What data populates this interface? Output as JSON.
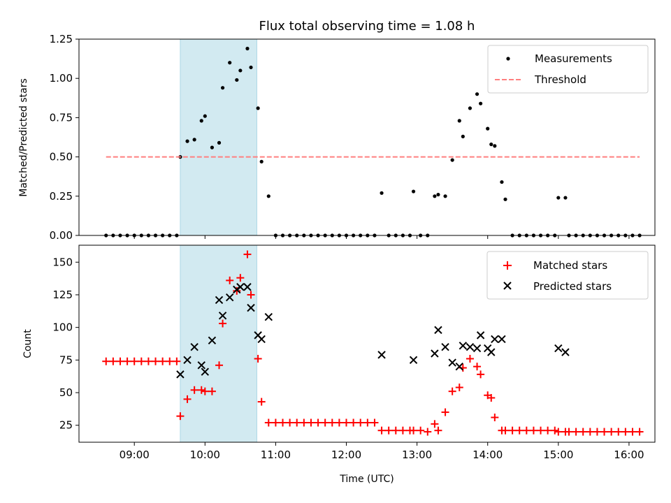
{
  "chart_data": [
    {
      "type": "scatter",
      "title": "Flux total observing time = 1.08 h",
      "xlabel": "",
      "ylabel": "Matched/Predicted stars",
      "ylim": [
        0,
        1.25
      ],
      "xlim": [
        "08:13",
        "16:22"
      ],
      "yticks": [
        "0.00",
        "0.25",
        "0.50",
        "0.75",
        "1.00",
        "1.25"
      ],
      "xticks": [
        "09:00",
        "10:00",
        "11:00",
        "12:00",
        "13:00",
        "14:00",
        "15:00",
        "16:00"
      ],
      "highlight_span": [
        "09:39",
        "10:44"
      ],
      "highlight_color": "#add8e6",
      "legend_position": "upper right",
      "series": [
        {
          "name": "Measurements",
          "kind": "points",
          "color": "#000000",
          "points": [
            [
              "08:36",
              0
            ],
            [
              "08:42",
              0
            ],
            [
              "08:48",
              0
            ],
            [
              "08:54",
              0
            ],
            [
              "09:00",
              0
            ],
            [
              "09:06",
              0
            ],
            [
              "09:12",
              0
            ],
            [
              "09:18",
              0
            ],
            [
              "09:24",
              0
            ],
            [
              "09:30",
              0
            ],
            [
              "09:36",
              0
            ],
            [
              "09:39",
              0.5
            ],
            [
              "09:45",
              0.6
            ],
            [
              "09:51",
              0.61
            ],
            [
              "09:57",
              0.73
            ],
            [
              "10:00",
              0.76
            ],
            [
              "10:06",
              0.56
            ],
            [
              "10:12",
              0.59
            ],
            [
              "10:15",
              0.94
            ],
            [
              "10:21",
              1.1
            ],
            [
              "10:27",
              0.99
            ],
            [
              "10:30",
              1.05
            ],
            [
              "10:36",
              1.19
            ],
            [
              "10:39",
              1.07
            ],
            [
              "10:45",
              0.81
            ],
            [
              "10:48",
              0.47
            ],
            [
              "10:54",
              0.25
            ],
            [
              "11:00",
              0
            ],
            [
              "11:06",
              0
            ],
            [
              "11:12",
              0
            ],
            [
              "11:18",
              0
            ],
            [
              "11:24",
              0
            ],
            [
              "11:30",
              0
            ],
            [
              "11:36",
              0
            ],
            [
              "11:42",
              0
            ],
            [
              "11:48",
              0
            ],
            [
              "11:54",
              0
            ],
            [
              "12:00",
              0
            ],
            [
              "12:06",
              0
            ],
            [
              "12:12",
              0
            ],
            [
              "12:18",
              0
            ],
            [
              "12:24",
              0
            ],
            [
              "12:30",
              0.27
            ],
            [
              "12:36",
              0
            ],
            [
              "12:42",
              0
            ],
            [
              "12:48",
              0
            ],
            [
              "12:54",
              0
            ],
            [
              "12:57",
              0.28
            ],
            [
              "13:03",
              0
            ],
            [
              "13:09",
              0
            ],
            [
              "13:15",
              0.25
            ],
            [
              "13:18",
              0.26
            ],
            [
              "13:24",
              0.25
            ],
            [
              "13:30",
              0.48
            ],
            [
              "13:36",
              0.73
            ],
            [
              "13:39",
              0.63
            ],
            [
              "13:45",
              0.81
            ],
            [
              "13:51",
              0.9
            ],
            [
              "13:54",
              0.84
            ],
            [
              "14:00",
              0.68
            ],
            [
              "14:03",
              0.58
            ],
            [
              "14:06",
              0.57
            ],
            [
              "14:12",
              0.34
            ],
            [
              "14:15",
              0.23
            ],
            [
              "14:21",
              0
            ],
            [
              "14:27",
              0
            ],
            [
              "14:33",
              0
            ],
            [
              "14:39",
              0
            ],
            [
              "14:45",
              0
            ],
            [
              "14:51",
              0
            ],
            [
              "14:57",
              0
            ],
            [
              "15:00",
              0.24
            ],
            [
              "15:06",
              0.24
            ],
            [
              "15:09",
              0
            ],
            [
              "15:15",
              0
            ],
            [
              "15:21",
              0
            ],
            [
              "15:27",
              0
            ],
            [
              "15:33",
              0
            ],
            [
              "15:39",
              0
            ],
            [
              "15:45",
              0
            ],
            [
              "15:51",
              0
            ],
            [
              "15:57",
              0
            ],
            [
              "16:03",
              0
            ],
            [
              "16:09",
              0
            ]
          ]
        },
        {
          "name": "Threshold",
          "kind": "dashed-line",
          "color": "#ff7f7f",
          "points": [
            [
              "08:36",
              0.5
            ],
            [
              "16:09",
              0.5
            ]
          ]
        }
      ]
    },
    {
      "type": "scatter",
      "title": "",
      "xlabel": "Time (UTC)",
      "ylabel": "Count",
      "ylim": [
        12,
        163
      ],
      "xlim": [
        "08:13",
        "16:22"
      ],
      "yticks": [
        "25",
        "50",
        "75",
        "100",
        "125",
        "150"
      ],
      "xticks": [
        "09:00",
        "10:00",
        "11:00",
        "12:00",
        "13:00",
        "14:00",
        "15:00",
        "16:00"
      ],
      "highlight_span": [
        "09:39",
        "10:44"
      ],
      "highlight_color": "#add8e6",
      "legend_position": "upper right",
      "series": [
        {
          "name": "Matched stars",
          "marker": "plus",
          "color": "#ff0000",
          "points": [
            [
              "08:36",
              74
            ],
            [
              "08:42",
              74
            ],
            [
              "08:48",
              74
            ],
            [
              "08:54",
              74
            ],
            [
              "09:00",
              74
            ],
            [
              "09:06",
              74
            ],
            [
              "09:12",
              74
            ],
            [
              "09:18",
              74
            ],
            [
              "09:24",
              74
            ],
            [
              "09:30",
              74
            ],
            [
              "09:36",
              74
            ],
            [
              "09:39",
              32
            ],
            [
              "09:45",
              45
            ],
            [
              "09:51",
              52
            ],
            [
              "09:57",
              52
            ],
            [
              "10:00",
              51
            ],
            [
              "10:06",
              51
            ],
            [
              "10:12",
              71
            ],
            [
              "10:15",
              103
            ],
            [
              "10:21",
              136
            ],
            [
              "10:27",
              128
            ],
            [
              "10:30",
              138
            ],
            [
              "10:36",
              156
            ],
            [
              "10:39",
              125
            ],
            [
              "10:45",
              76
            ],
            [
              "10:48",
              43
            ],
            [
              "10:54",
              27
            ],
            [
              "11:00",
              27
            ],
            [
              "11:06",
              27
            ],
            [
              "11:12",
              27
            ],
            [
              "11:18",
              27
            ],
            [
              "11:24",
              27
            ],
            [
              "11:30",
              27
            ],
            [
              "11:36",
              27
            ],
            [
              "11:42",
              27
            ],
            [
              "11:48",
              27
            ],
            [
              "11:54",
              27
            ],
            [
              "12:00",
              27
            ],
            [
              "12:06",
              27
            ],
            [
              "12:12",
              27
            ],
            [
              "12:18",
              27
            ],
            [
              "12:24",
              27
            ],
            [
              "12:30",
              21
            ],
            [
              "12:36",
              21
            ],
            [
              "12:42",
              21
            ],
            [
              "12:48",
              21
            ],
            [
              "12:54",
              21
            ],
            [
              "12:57",
              21
            ],
            [
              "13:03",
              21
            ],
            [
              "13:09",
              20
            ],
            [
              "13:15",
              26
            ],
            [
              "13:18",
              21
            ],
            [
              "13:24",
              35
            ],
            [
              "13:30",
              51
            ],
            [
              "13:36",
              54
            ],
            [
              "13:39",
              69
            ],
            [
              "13:45",
              76
            ],
            [
              "13:51",
              70
            ],
            [
              "13:54",
              64
            ],
            [
              "14:00",
              48
            ],
            [
              "14:03",
              46
            ],
            [
              "14:06",
              31
            ],
            [
              "14:12",
              21
            ],
            [
              "14:15",
              21
            ],
            [
              "14:21",
              21
            ],
            [
              "14:27",
              21
            ],
            [
              "14:33",
              21
            ],
            [
              "14:39",
              21
            ],
            [
              "14:45",
              21
            ],
            [
              "14:51",
              21
            ],
            [
              "14:57",
              21
            ],
            [
              "15:00",
              20
            ],
            [
              "15:06",
              20
            ],
            [
              "15:09",
              20
            ],
            [
              "15:15",
              20
            ],
            [
              "15:21",
              20
            ],
            [
              "15:27",
              20
            ],
            [
              "15:33",
              20
            ],
            [
              "15:39",
              20
            ],
            [
              "15:45",
              20
            ],
            [
              "15:51",
              20
            ],
            [
              "15:57",
              20
            ],
            [
              "16:03",
              20
            ],
            [
              "16:09",
              20
            ]
          ]
        },
        {
          "name": "Predicted stars",
          "marker": "x",
          "color": "#000000",
          "points": [
            [
              "09:39",
              64
            ],
            [
              "09:45",
              75
            ],
            [
              "09:51",
              85
            ],
            [
              "09:57",
              71
            ],
            [
              "10:00",
              66
            ],
            [
              "10:06",
              90
            ],
            [
              "10:12",
              121
            ],
            [
              "10:15",
              109
            ],
            [
              "10:21",
              123
            ],
            [
              "10:27",
              129
            ],
            [
              "10:30",
              131
            ],
            [
              "10:36",
              131
            ],
            [
              "10:39",
              115
            ],
            [
              "10:45",
              94
            ],
            [
              "10:48",
              91
            ],
            [
              "10:54",
              108
            ],
            [
              "12:30",
              79
            ],
            [
              "12:57",
              75
            ],
            [
              "13:15",
              80
            ],
            [
              "13:18",
              98
            ],
            [
              "13:24",
              85
            ],
            [
              "13:30",
              73
            ],
            [
              "13:36",
              70
            ],
            [
              "13:39",
              86
            ],
            [
              "13:45",
              85
            ],
            [
              "13:51",
              84
            ],
            [
              "13:54",
              94
            ],
            [
              "14:00",
              84
            ],
            [
              "14:03",
              81
            ],
            [
              "14:06",
              91
            ],
            [
              "14:12",
              91
            ],
            [
              "15:00",
              84
            ],
            [
              "15:06",
              81
            ]
          ]
        }
      ]
    }
  ]
}
